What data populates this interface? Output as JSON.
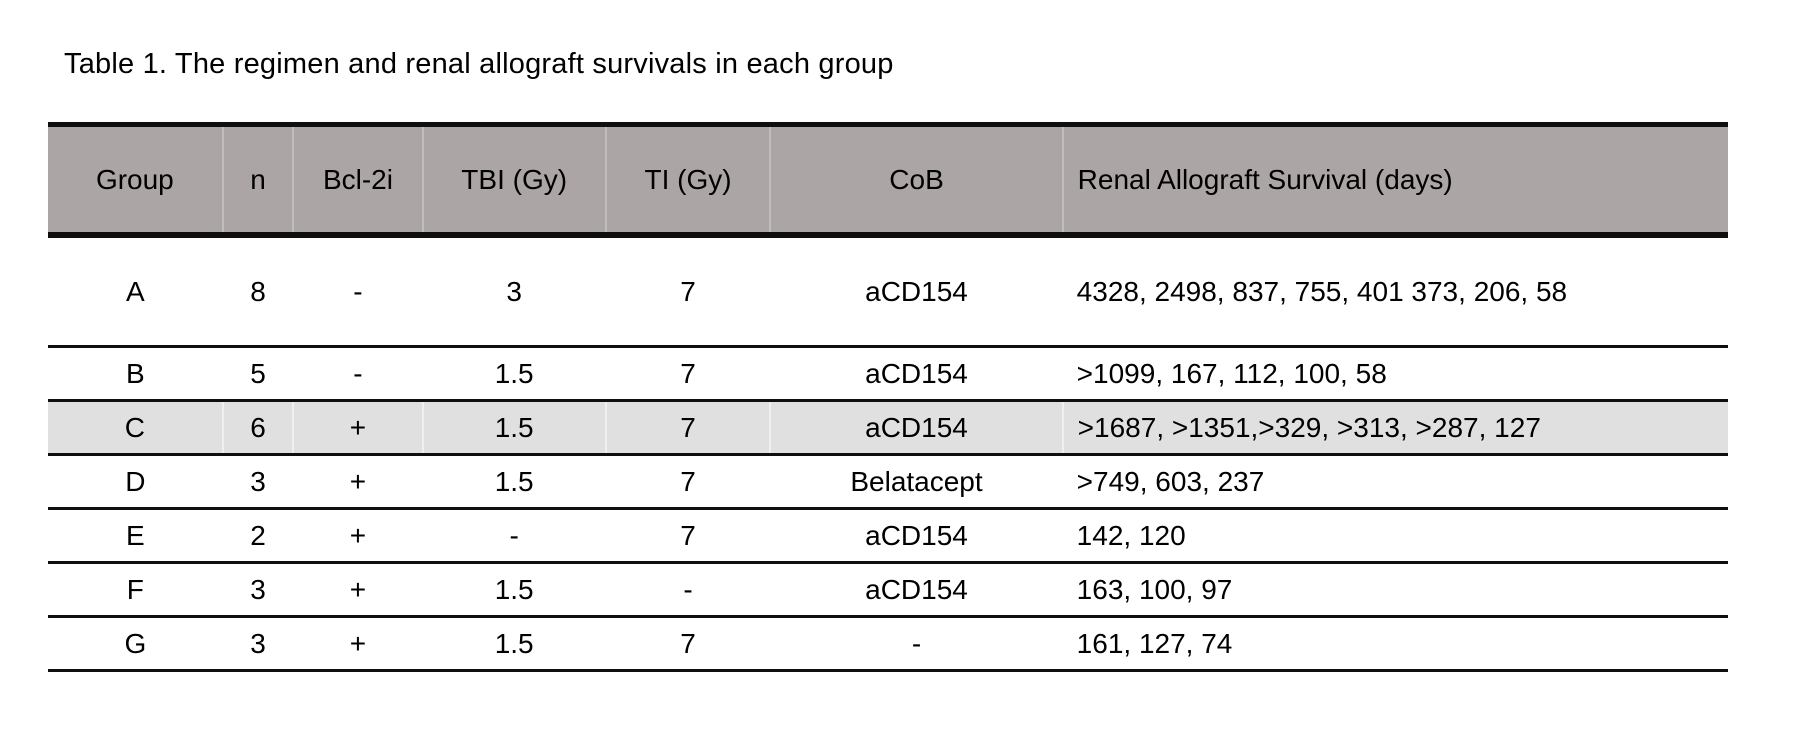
{
  "colors": {
    "page_bg": "#ffffff",
    "header_bg": "#aba5a5",
    "highlight_bg": "#e0e0e0",
    "border": "#0f0f0f",
    "text": "#000000"
  },
  "title": "Table 1. The regimen and renal allograft survivals in each group",
  "table": {
    "columns": [
      {
        "label": "Group"
      },
      {
        "label": "n"
      },
      {
        "label": "Bcl-2i"
      },
      {
        "label": "TBI (Gy)"
      },
      {
        "label": "TI (Gy)"
      },
      {
        "label": "CoB"
      },
      {
        "label": "Renal Allograft Survival (days)"
      }
    ],
    "rows": [
      {
        "group": "A",
        "n": "8",
        "bcl2i": "-",
        "tbi": "3",
        "ti": "7",
        "cob": "aCD154",
        "survival": "4328, 2498, 837, 755, 401 373, 206, 58"
      },
      {
        "group": "B",
        "n": "5",
        "bcl2i": "-",
        "tbi": "1.5",
        "ti": "7",
        "cob": "aCD154",
        "survival": ">1099, 167, 112, 100, 58"
      },
      {
        "group": "C",
        "n": "6",
        "bcl2i": "+",
        "tbi": "1.5",
        "ti": "7",
        "cob": "aCD154",
        "survival": ">1687, >1351,>329, >313, >287, 127"
      },
      {
        "group": "D",
        "n": "3",
        "bcl2i": "+",
        "tbi": "1.5",
        "ti": "7",
        "cob": "Belatacept",
        "survival": ">749, 603, 237"
      },
      {
        "group": "E",
        "n": "2",
        "bcl2i": "+",
        "tbi": "-",
        "ti": "7",
        "cob": "aCD154",
        "survival": "142, 120"
      },
      {
        "group": "F",
        "n": "3",
        "bcl2i": "+",
        "tbi": "1.5",
        "ti": "-",
        "cob": "aCD154",
        "survival": "163, 100, 97"
      },
      {
        "group": "G",
        "n": "3",
        "bcl2i": "+",
        "tbi": "1.5",
        "ti": "7",
        "cob": "-",
        "survival": "161, 127, 74"
      }
    ]
  }
}
